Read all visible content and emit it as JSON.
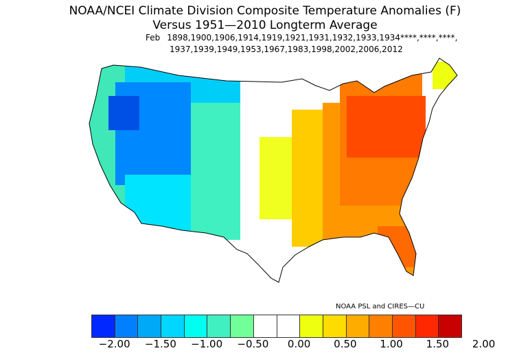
{
  "title": "NOAA/NCEI Climate Division Composite Temperature Anomalies (F)",
  "subtitle": "Versus 1951—2010 Longterm Average",
  "month": "Feb",
  "years_line1": "1898,1900,1906,1914,1919,1921,1931,1932,1933,1934****,****,****,",
  "years_line2": "1937,1939,1949,1953,1967,1983,1998,2002,2006,2012",
  "credit": "NOAA PSL and CIRES—CU",
  "colorbar": {
    "colors": [
      "#0028ff",
      "#0050f0",
      "#0080ff",
      "#00a8f8",
      "#00d6ff",
      "#00fff0",
      "#40f0c0",
      "#70ff98",
      "#ffffff",
      "#ffffff",
      "#eeff10",
      "#ffdc00",
      "#ffac00",
      "#ff8000",
      "#ff5500",
      "#ff2800",
      "#ff0000",
      "#c80000"
    ],
    "tick_labels": [
      "−2.00",
      "−1.50",
      "−1.00",
      "−0.50",
      "0.00",
      "0.50",
      "1.00",
      "1.50",
      "2.00"
    ],
    "tick_values": [
      -2.0,
      -1.5,
      -1.0,
      -0.5,
      0.0,
      0.5,
      1.0,
      1.5,
      2.0
    ]
  },
  "map": {
    "region_colors": {
      "west_coast": "#40e8b8",
      "northwest_interior": "#0088ff",
      "northwest_core": "#0050e6",
      "northern_tier": "#00cef8",
      "southwest": "#00e4ff",
      "plains": "#40f0c0",
      "central": "#ffffff",
      "midwest_south": "#f0ff20",
      "ohio_valley": "#ffcc00",
      "southeast": "#ff9800",
      "east": "#ff7a00",
      "mid_atlantic": "#ff4a00",
      "new_england_north": "#eeff10"
    }
  }
}
